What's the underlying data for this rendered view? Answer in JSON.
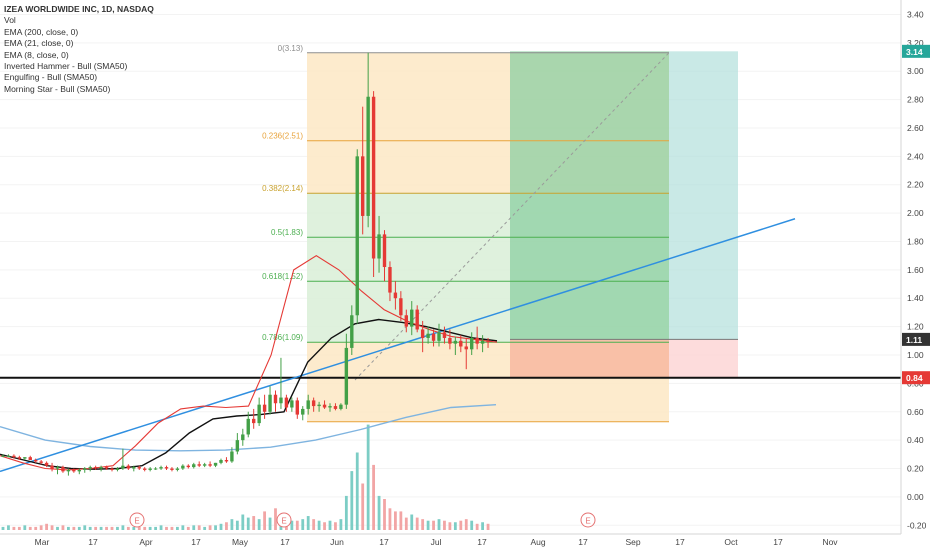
{
  "chart_data": {
    "type": "candlestick",
    "symbol_line": "IZEA WORLDWIDE INC, 1D, NASDAQ",
    "legend": [
      "Vol",
      "EMA (200, close, 0)",
      "EMA (21, close, 0)",
      "EMA (8, close, 0)",
      "Inverted Hammer - Bull (SMA50)",
      "Engulfing - Bull (SMA50)",
      "Morning Star - Bull (SMA50)"
    ],
    "y_axis": {
      "ticks": [
        "3.40",
        "3.20",
        "3.00",
        "2.80",
        "2.60",
        "2.40",
        "2.20",
        "2.00",
        "1.80",
        "1.60",
        "1.40",
        "1.20",
        "1.00",
        "0.80",
        "0.60",
        "0.40",
        "0.20",
        "0.00",
        "-0.20"
      ],
      "ylim": [
        -0.23,
        3.5
      ]
    },
    "x_axis": {
      "ticks": [
        "Mar",
        "17",
        "Apr",
        "17",
        "May",
        "17",
        "Jun",
        "17",
        "Jul",
        "17",
        "Aug",
        "17",
        "Sep",
        "17",
        "Oct",
        "17",
        "Nov"
      ]
    },
    "price_labels": [
      {
        "value": 3.14,
        "text": "3.14",
        "color": "#26a69a"
      },
      {
        "value": 1.11,
        "text": "1.11",
        "color": "#333333"
      },
      {
        "value": 0.84,
        "text": "0.84",
        "color": "#e53935"
      }
    ],
    "fib_levels": [
      {
        "ratio": "0",
        "price": 3.13,
        "label": "0(3.13)"
      },
      {
        "ratio": "0.236",
        "price": 2.51,
        "label": "0.236(2.51)"
      },
      {
        "ratio": "0.382",
        "price": 2.14,
        "label": "0.382(2.14)"
      },
      {
        "ratio": "0.5",
        "price": 1.83,
        "label": "0.5(1.83)"
      },
      {
        "ratio": "0.618",
        "price": 1.52,
        "label": "0.618(1.52)"
      },
      {
        "ratio": "0.786",
        "price": 1.09,
        "label": "0.786(1.09)"
      }
    ],
    "support_line": 0.84,
    "earnings_marker": "E",
    "trade_box": {
      "entry": 1.11,
      "target": 3.14,
      "stop": 0.84
    },
    "candles": [
      [
        0.29,
        0.3,
        0.28,
        0.29
      ],
      [
        0.29,
        0.3,
        0.28,
        0.29
      ],
      [
        0.29,
        0.3,
        0.27,
        0.28
      ],
      [
        0.28,
        0.29,
        0.26,
        0.27
      ],
      [
        0.27,
        0.28,
        0.26,
        0.28
      ],
      [
        0.28,
        0.29,
        0.26,
        0.26
      ],
      [
        0.26,
        0.27,
        0.24,
        0.25
      ],
      [
        0.25,
        0.26,
        0.23,
        0.24
      ],
      [
        0.24,
        0.25,
        0.21,
        0.22
      ],
      [
        0.22,
        0.24,
        0.18,
        0.2
      ],
      [
        0.2,
        0.22,
        0.16,
        0.21
      ],
      [
        0.21,
        0.22,
        0.17,
        0.18
      ],
      [
        0.18,
        0.2,
        0.15,
        0.19
      ],
      [
        0.19,
        0.2,
        0.17,
        0.18
      ],
      [
        0.18,
        0.2,
        0.16,
        0.19
      ],
      [
        0.19,
        0.21,
        0.17,
        0.2
      ],
      [
        0.2,
        0.22,
        0.18,
        0.21
      ],
      [
        0.21,
        0.22,
        0.19,
        0.2
      ],
      [
        0.2,
        0.22,
        0.18,
        0.21
      ],
      [
        0.21,
        0.22,
        0.19,
        0.2
      ],
      [
        0.2,
        0.21,
        0.18,
        0.19
      ],
      [
        0.19,
        0.21,
        0.18,
        0.2
      ],
      [
        0.2,
        0.34,
        0.19,
        0.22
      ],
      [
        0.22,
        0.23,
        0.19,
        0.2
      ],
      [
        0.2,
        0.22,
        0.18,
        0.21
      ],
      [
        0.21,
        0.22,
        0.19,
        0.2
      ],
      [
        0.2,
        0.21,
        0.18,
        0.19
      ],
      [
        0.19,
        0.21,
        0.18,
        0.2
      ],
      [
        0.2,
        0.21,
        0.19,
        0.2
      ],
      [
        0.2,
        0.22,
        0.19,
        0.21
      ],
      [
        0.21,
        0.22,
        0.19,
        0.2
      ],
      [
        0.2,
        0.21,
        0.18,
        0.19
      ],
      [
        0.19,
        0.21,
        0.18,
        0.2
      ],
      [
        0.2,
        0.23,
        0.19,
        0.22
      ],
      [
        0.22,
        0.23,
        0.2,
        0.21
      ],
      [
        0.21,
        0.24,
        0.2,
        0.23
      ],
      [
        0.23,
        0.25,
        0.21,
        0.22
      ],
      [
        0.22,
        0.24,
        0.21,
        0.23
      ],
      [
        0.23,
        0.25,
        0.21,
        0.22
      ],
      [
        0.22,
        0.24,
        0.21,
        0.24
      ],
      [
        0.24,
        0.27,
        0.23,
        0.26
      ],
      [
        0.26,
        0.28,
        0.24,
        0.25
      ],
      [
        0.25,
        0.35,
        0.24,
        0.32
      ],
      [
        0.32,
        0.45,
        0.3,
        0.4
      ],
      [
        0.4,
        0.48,
        0.36,
        0.44
      ],
      [
        0.44,
        0.6,
        0.42,
        0.55
      ],
      [
        0.55,
        0.62,
        0.48,
        0.52
      ],
      [
        0.52,
        0.7,
        0.5,
        0.65
      ],
      [
        0.65,
        0.72,
        0.55,
        0.6
      ],
      [
        0.6,
        0.78,
        0.58,
        0.72
      ],
      [
        0.72,
        0.75,
        0.6,
        0.66
      ],
      [
        0.66,
        0.98,
        0.62,
        0.7
      ],
      [
        0.7,
        0.72,
        0.6,
        0.63
      ],
      [
        0.63,
        0.7,
        0.6,
        0.68
      ],
      [
        0.68,
        0.7,
        0.55,
        0.58
      ],
      [
        0.58,
        0.64,
        0.54,
        0.62
      ],
      [
        0.62,
        0.72,
        0.58,
        0.68
      ],
      [
        0.68,
        0.7,
        0.6,
        0.64
      ],
      [
        0.64,
        0.67,
        0.6,
        0.65
      ],
      [
        0.65,
        0.68,
        0.62,
        0.63
      ],
      [
        0.63,
        0.66,
        0.6,
        0.64
      ],
      [
        0.64,
        0.66,
        0.61,
        0.62
      ],
      [
        0.62,
        0.66,
        0.61,
        0.65
      ],
      [
        0.65,
        1.15,
        0.62,
        1.05
      ],
      [
        1.05,
        1.35,
        1.0,
        1.28
      ],
      [
        1.28,
        2.45,
        1.22,
        2.4
      ],
      [
        2.4,
        2.75,
        1.85,
        1.98
      ],
      [
        1.98,
        3.13,
        1.9,
        2.82
      ],
      [
        2.82,
        2.86,
        1.55,
        1.68
      ],
      [
        1.68,
        1.98,
        1.58,
        1.85
      ],
      [
        1.85,
        1.88,
        1.52,
        1.62
      ],
      [
        1.62,
        1.66,
        1.38,
        1.44
      ],
      [
        1.44,
        1.52,
        1.32,
        1.4
      ],
      [
        1.4,
        1.45,
        1.24,
        1.28
      ],
      [
        1.28,
        1.32,
        1.16,
        1.2
      ],
      [
        1.2,
        1.38,
        1.14,
        1.32
      ],
      [
        1.32,
        1.35,
        1.16,
        1.18
      ],
      [
        1.18,
        1.24,
        1.02,
        1.12
      ],
      [
        1.12,
        1.2,
        1.08,
        1.15
      ],
      [
        1.15,
        1.18,
        1.06,
        1.1
      ],
      [
        1.1,
        1.22,
        1.06,
        1.16
      ],
      [
        1.16,
        1.2,
        1.08,
        1.12
      ],
      [
        1.12,
        1.18,
        1.04,
        1.08
      ],
      [
        1.08,
        1.13,
        1.0,
        1.1
      ],
      [
        1.1,
        1.14,
        1.02,
        1.06
      ],
      [
        1.06,
        1.12,
        0.9,
        1.04
      ],
      [
        1.04,
        1.16,
        1.0,
        1.12
      ],
      [
        1.12,
        1.2,
        1.04,
        1.08
      ],
      [
        1.08,
        1.14,
        1.02,
        1.1
      ],
      [
        1.1,
        1.12,
        1.05,
        1.09
      ]
    ],
    "volumes": [
      2,
      3,
      2,
      2,
      3,
      2,
      2,
      3,
      4,
      3,
      2,
      3,
      2,
      2,
      2,
      3,
      2,
      2,
      2,
      2,
      2,
      2,
      3,
      2,
      2,
      2,
      2,
      2,
      2,
      3,
      2,
      2,
      2,
      3,
      2,
      3,
      3,
      2,
      3,
      3,
      4,
      5,
      7,
      6,
      10,
      8,
      9,
      7,
      12,
      8,
      14,
      8,
      10,
      6,
      6,
      7,
      9,
      7,
      6,
      5,
      6,
      5,
      7,
      22,
      38,
      50,
      30,
      68,
      42,
      22,
      20,
      14,
      12,
      12,
      8,
      10,
      8,
      7,
      6,
      6,
      7,
      6,
      5,
      5,
      6,
      7,
      6,
      4,
      5,
      4
    ],
    "ema200": [
      0.495,
      0.4,
      0.355,
      0.33,
      0.325,
      0.33,
      0.35,
      0.4,
      0.475,
      0.56,
      0.63,
      0.65
    ],
    "ema21": [
      0.3,
      0.26,
      0.22,
      0.2,
      0.195,
      0.2,
      0.22,
      0.31,
      0.45,
      0.55,
      0.57,
      0.58,
      0.6,
      0.95,
      1.12,
      1.22,
      1.25,
      1.23,
      1.2,
      1.16,
      1.12,
      1.1
    ],
    "ema8": [
      0.29,
      0.24,
      0.2,
      0.19,
      0.2,
      0.22,
      0.36,
      0.52,
      0.62,
      0.64,
      0.63,
      0.64,
      1.0,
      1.6,
      1.7,
      1.6,
      1.45,
      1.32,
      1.24,
      1.18,
      1.13,
      1.11,
      1.09
    ]
  }
}
